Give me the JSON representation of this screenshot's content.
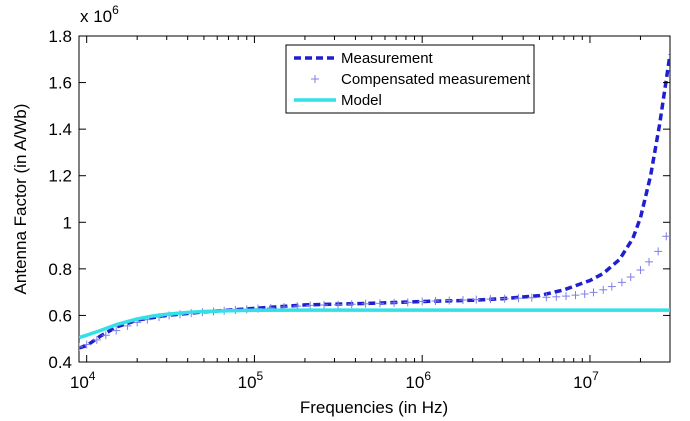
{
  "chart_data": {
    "type": "line",
    "title": "",
    "xlabel": "Frequencies (in Hz)",
    "ylabel": "Antenna Factor (in A/Wb)",
    "x_scale": "log",
    "xlim": [
      9000,
      30000000
    ],
    "ylim": [
      0.4,
      1.8
    ],
    "y_multiplier_label": "x 10",
    "y_multiplier_exponent": "6",
    "x_ticks": [
      {
        "value": 10000,
        "base": "10",
        "exp": "4"
      },
      {
        "value": 100000,
        "base": "10",
        "exp": "5"
      },
      {
        "value": 1000000,
        "base": "10",
        "exp": "6"
      },
      {
        "value": 10000000,
        "base": "10",
        "exp": "7"
      }
    ],
    "y_ticks": [
      {
        "value": 0.4,
        "label": "0.4"
      },
      {
        "value": 0.6,
        "label": "0.6"
      },
      {
        "value": 0.8,
        "label": "0.8"
      },
      {
        "value": 1.0,
        "label": "1"
      },
      {
        "value": 1.2,
        "label": "1.2"
      },
      {
        "value": 1.4,
        "label": "1.4"
      },
      {
        "value": 1.6,
        "label": "1.6"
      },
      {
        "value": 1.8,
        "label": "1.8"
      }
    ],
    "grid": false,
    "legend_position": "top-center",
    "series": [
      {
        "name": "Measurement",
        "style": "dashed",
        "color": "#1f1fd0",
        "x": [
          9000,
          10000,
          12000,
          15000,
          20000,
          30000,
          50000,
          100000,
          200000,
          500000,
          1000000,
          2000000,
          3000000,
          5000000,
          7000000,
          10000000,
          12000000,
          15000000,
          18000000,
          20000000,
          23000000,
          26000000,
          30000000
        ],
        "y": [
          0.46,
          0.47,
          0.51,
          0.55,
          0.58,
          0.6,
          0.615,
          0.63,
          0.645,
          0.652,
          0.66,
          0.665,
          0.672,
          0.685,
          0.71,
          0.75,
          0.78,
          0.84,
          0.93,
          1.02,
          1.2,
          1.42,
          1.72
        ]
      },
      {
        "name": "Compensated measurement",
        "style": "plus-markers",
        "color": "#7f7fe6",
        "x": [
          9000,
          10000,
          11500,
          13000,
          15000,
          17500,
          20000,
          23000,
          27000,
          31000,
          36000,
          42000,
          49000,
          57000,
          66000,
          77000,
          90000,
          105000,
          125000,
          150000,
          180000,
          215000,
          260000,
          315000,
          380000,
          460000,
          560000,
          680000,
          820000,
          1000000,
          1200000,
          1450000,
          1750000,
          2100000,
          2550000,
          3100000,
          3750000,
          4500000,
          5500000,
          6300000,
          7200000,
          8200000,
          9300000,
          10500000,
          12000000,
          13500000,
          15500000,
          17500000,
          20000000,
          22500000,
          25500000,
          28500000
        ],
        "y": [
          0.465,
          0.475,
          0.495,
          0.515,
          0.535,
          0.555,
          0.57,
          0.582,
          0.593,
          0.6,
          0.605,
          0.61,
          0.614,
          0.617,
          0.62,
          0.623,
          0.626,
          0.629,
          0.632,
          0.636,
          0.64,
          0.643,
          0.645,
          0.646,
          0.648,
          0.65,
          0.652,
          0.654,
          0.656,
          0.66,
          0.662,
          0.664,
          0.666,
          0.668,
          0.67,
          0.672,
          0.674,
          0.676,
          0.678,
          0.68,
          0.683,
          0.687,
          0.692,
          0.699,
          0.71,
          0.724,
          0.742,
          0.765,
          0.795,
          0.83,
          0.875,
          0.94
        ]
      },
      {
        "name": "Model",
        "style": "solid",
        "color": "#33e0e8",
        "x": [
          9000,
          10000,
          12000,
          15000,
          20000,
          25000,
          30000,
          40000,
          50000,
          70000,
          100000,
          200000,
          1000000,
          10000000,
          30000000
        ],
        "y": [
          0.505,
          0.515,
          0.535,
          0.56,
          0.585,
          0.598,
          0.605,
          0.613,
          0.617,
          0.62,
          0.622,
          0.623,
          0.623,
          0.623,
          0.623
        ]
      }
    ]
  }
}
